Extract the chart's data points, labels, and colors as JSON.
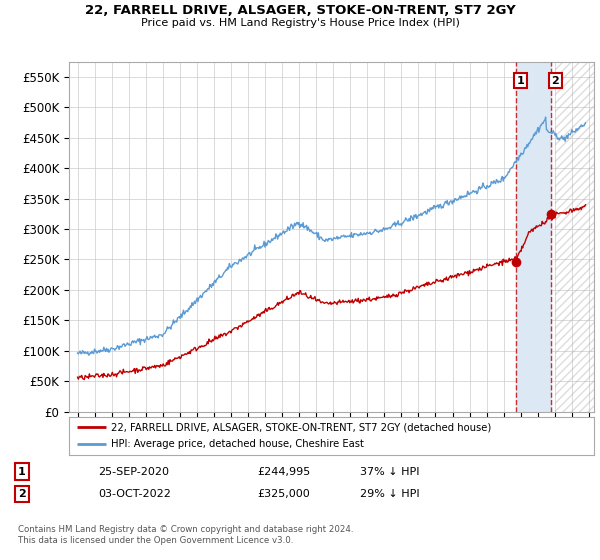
{
  "title": "22, FARRELL DRIVE, ALSAGER, STOKE-ON-TRENT, ST7 2GY",
  "subtitle": "Price paid vs. HM Land Registry's House Price Index (HPI)",
  "ylabel_ticks": [
    "£0",
    "£50K",
    "£100K",
    "£150K",
    "£200K",
    "£250K",
    "£300K",
    "£350K",
    "£400K",
    "£450K",
    "£500K",
    "£550K"
  ],
  "ytick_values": [
    0,
    50000,
    100000,
    150000,
    200000,
    250000,
    300000,
    350000,
    400000,
    450000,
    500000,
    550000
  ],
  "ylim": [
    0,
    575000
  ],
  "xlim_start": 1994.5,
  "xlim_end": 2025.3,
  "hpi_color": "#5b9bd5",
  "price_color": "#c00000",
  "shade_color": "#dce9f5",
  "marker1_date": 2020.73,
  "marker1_price": 244995,
  "marker2_date": 2022.75,
  "marker2_price": 325000,
  "legend_label1": "22, FARRELL DRIVE, ALSAGER, STOKE-ON-TRENT, ST7 2GY (detached house)",
  "legend_label2": "HPI: Average price, detached house, Cheshire East",
  "table_row1": [
    "1",
    "25-SEP-2020",
    "£244,995",
    "37% ↓ HPI"
  ],
  "table_row2": [
    "2",
    "03-OCT-2022",
    "£325,000",
    "29% ↓ HPI"
  ],
  "footer": "Contains HM Land Registry data © Crown copyright and database right 2024.\nThis data is licensed under the Open Government Licence v3.0.",
  "background_color": "#ffffff",
  "grid_color": "#cccccc"
}
